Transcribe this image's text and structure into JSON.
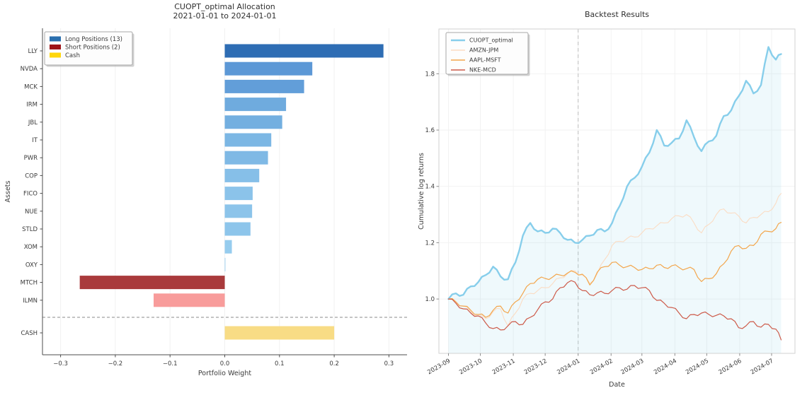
{
  "figure": {
    "background": "#ffffff"
  },
  "chart_data": [
    {
      "type": "bar",
      "orientation": "horizontal",
      "title": "CUOPT_optimal Allocation",
      "subtitle": "2021-01-01 to 2024-01-01",
      "xlabel": "Portfolio Weight",
      "ylabel": "Assets",
      "xlim": [
        -0.333,
        0.333
      ],
      "xticks": [
        -0.3,
        -0.2,
        -0.1,
        0.0,
        0.1,
        0.2,
        0.3
      ],
      "xtick_labels": [
        "−0.3",
        "−0.2",
        "−0.1",
        "0.0",
        "0.1",
        "0.2",
        "0.3"
      ],
      "categories": [
        "LLY",
        "NVDA",
        "MCK",
        "IRM",
        "JBL",
        "IT",
        "PWR",
        "COP",
        "FICO",
        "NUE",
        "STLD",
        "XOM",
        "OXY",
        "MTCH",
        "ILMN",
        "CASH"
      ],
      "values": [
        0.29,
        0.16,
        0.145,
        0.112,
        0.105,
        0.085,
        0.079,
        0.063,
        0.051,
        0.05,
        0.047,
        0.013,
        0.001,
        -0.265,
        -0.13,
        0.2
      ],
      "bar_colors": [
        "#2e6db4",
        "#5c98d6",
        "#629ed9",
        "#6fabde",
        "#73afe0",
        "#7cb7e4",
        "#7fb9e5",
        "#86bfe8",
        "#8bc3ea",
        "#8cc4ea",
        "#8dc5eb",
        "#96ccee",
        "#9bd0f0",
        "#a93a3c",
        "#f89c9b",
        "#f8dc85"
      ],
      "separator_before_category": "CASH",
      "legend": {
        "items": [
          {
            "label": "Long Positions (13)",
            "color": "#2a6fae"
          },
          {
            "label": "Short Positions (2)",
            "color": "#9e1317"
          },
          {
            "label": "Cash",
            "color": "#ffd60a"
          }
        ]
      }
    },
    {
      "type": "line",
      "title": "Backtest Results",
      "xlabel": "Date",
      "ylabel": "Cumulative log returns",
      "ylim": [
        0.807,
        1.959
      ],
      "yticks": [
        1.0,
        1.2,
        1.4,
        1.6,
        1.8
      ],
      "ytick_labels": [
        "1.0",
        "1.2",
        "1.4",
        "1.6",
        "1.8"
      ],
      "xtick_labels": [
        "2023-09",
        "2023-10",
        "2023-11",
        "2023-12",
        "2024-01",
        "2024-02",
        "2024-03",
        "2024-04",
        "2024-05",
        "2024-06",
        "2024-07"
      ],
      "xtick_days": [
        0,
        30,
        61,
        91,
        122,
        153,
        182,
        213,
        243,
        274,
        304
      ],
      "x_domain_days": [
        -9,
        326
      ],
      "vline_day": 122,
      "grid": true,
      "legend_position": "upper-left",
      "x_days": [
        0,
        7,
        14,
        21,
        28,
        35,
        42,
        49,
        56,
        63,
        70,
        77,
        84,
        91,
        98,
        105,
        112,
        119,
        126,
        133,
        140,
        147,
        154,
        161,
        168,
        175,
        182,
        189,
        196,
        203,
        210,
        217,
        224,
        231,
        238,
        245,
        252,
        259,
        266,
        273,
        280,
        287,
        294,
        301,
        308,
        313
      ],
      "series": [
        {
          "name": "CUOPT_optimal",
          "color": "#87ceeb",
          "width": 2.4,
          "fill_under": true,
          "fill_opacity": 0.13,
          "values": [
            1.0,
            1.02,
            1.015,
            1.045,
            1.06,
            1.085,
            1.115,
            1.08,
            1.07,
            1.13,
            1.225,
            1.27,
            1.24,
            1.235,
            1.25,
            1.235,
            1.21,
            1.2,
            1.21,
            1.225,
            1.245,
            1.24,
            1.27,
            1.33,
            1.4,
            1.43,
            1.47,
            1.52,
            1.6,
            1.545,
            1.555,
            1.57,
            1.635,
            1.575,
            1.525,
            1.56,
            1.58,
            1.65,
            1.67,
            1.72,
            1.775,
            1.73,
            1.76,
            1.895,
            1.85,
            1.87
          ]
        },
        {
          "name": "AMZN-JPM",
          "color": "#fbdcc3",
          "width": 1.1,
          "fill_under": false,
          "values": [
            1.0,
            0.99,
            0.975,
            0.955,
            0.94,
            0.93,
            0.955,
            0.965,
            0.905,
            0.95,
            1.0,
            1.02,
            1.03,
            1.04,
            1.055,
            1.075,
            1.09,
            1.1,
            1.085,
            1.055,
            1.09,
            1.14,
            1.19,
            1.205,
            1.215,
            1.22,
            1.235,
            1.25,
            1.26,
            1.27,
            1.285,
            1.295,
            1.3,
            1.27,
            1.235,
            1.265,
            1.3,
            1.32,
            1.305,
            1.295,
            1.27,
            1.29,
            1.3,
            1.31,
            1.34,
            1.375
          ]
        },
        {
          "name": "AAPL-MSFT",
          "color": "#f3a64c",
          "width": 1.2,
          "fill_under": false,
          "values": [
            1.0,
            0.99,
            0.975,
            0.96,
            0.945,
            0.935,
            0.96,
            0.975,
            0.95,
            0.99,
            1.02,
            1.055,
            1.07,
            1.073,
            1.078,
            1.085,
            1.092,
            1.095,
            1.088,
            1.05,
            1.095,
            1.115,
            1.13,
            1.12,
            1.115,
            1.112,
            1.105,
            1.108,
            1.12,
            1.112,
            1.118,
            1.112,
            1.108,
            1.105,
            1.062,
            1.072,
            1.09,
            1.125,
            1.17,
            1.19,
            1.18,
            1.19,
            1.23,
            1.24,
            1.25,
            1.272
          ]
        },
        {
          "name": "NKE-MCD",
          "color": "#cd5a49",
          "width": 1.2,
          "fill_under": false,
          "values": [
            1.0,
            0.985,
            0.965,
            0.95,
            0.94,
            0.915,
            0.895,
            0.89,
            0.905,
            0.92,
            0.91,
            0.935,
            0.962,
            0.99,
            1.0,
            1.04,
            1.058,
            1.06,
            1.03,
            1.015,
            1.022,
            1.02,
            1.03,
            1.04,
            1.035,
            1.048,
            1.04,
            1.03,
            0.995,
            0.985,
            0.97,
            0.95,
            0.93,
            0.945,
            0.95,
            0.945,
            0.942,
            0.94,
            0.93,
            0.898,
            0.905,
            0.92,
            0.9,
            0.91,
            0.893,
            0.855
          ]
        }
      ]
    }
  ]
}
